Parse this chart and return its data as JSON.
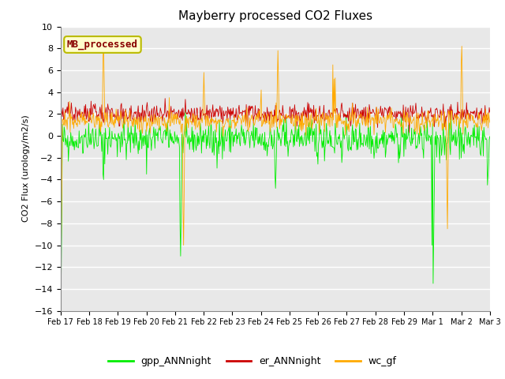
{
  "title": "Mayberry processed CO2 Fluxes",
  "ylabel": "CO2 Flux (urology/m2/s)",
  "ylim": [
    -16,
    10
  ],
  "yticks": [
    -16,
    -14,
    -12,
    -10,
    -8,
    -6,
    -4,
    -2,
    0,
    2,
    4,
    6,
    8,
    10
  ],
  "fig_bg_color": "#ffffff",
  "plot_bg_color": "#e8e8e8",
  "color_gpp": "#00ee00",
  "color_er": "#cc0000",
  "color_wc": "#ffaa00",
  "legend_box_facecolor": "#ffffcc",
  "legend_box_edgecolor": "#bbbb00",
  "legend_text": "MB_processed",
  "legend_text_color": "#880000",
  "tick_labels": [
    "Feb 17",
    "Feb 18",
    "Feb 19",
    "Feb 20",
    "Feb 21",
    "Feb 22",
    "Feb 23",
    "Feb 24",
    "Feb 25",
    "Feb 26",
    "Feb 27",
    "Feb 28",
    "Feb 29",
    "Mar 1",
    "Mar 2",
    "Mar 3"
  ],
  "n_points": 720,
  "seed": 42
}
